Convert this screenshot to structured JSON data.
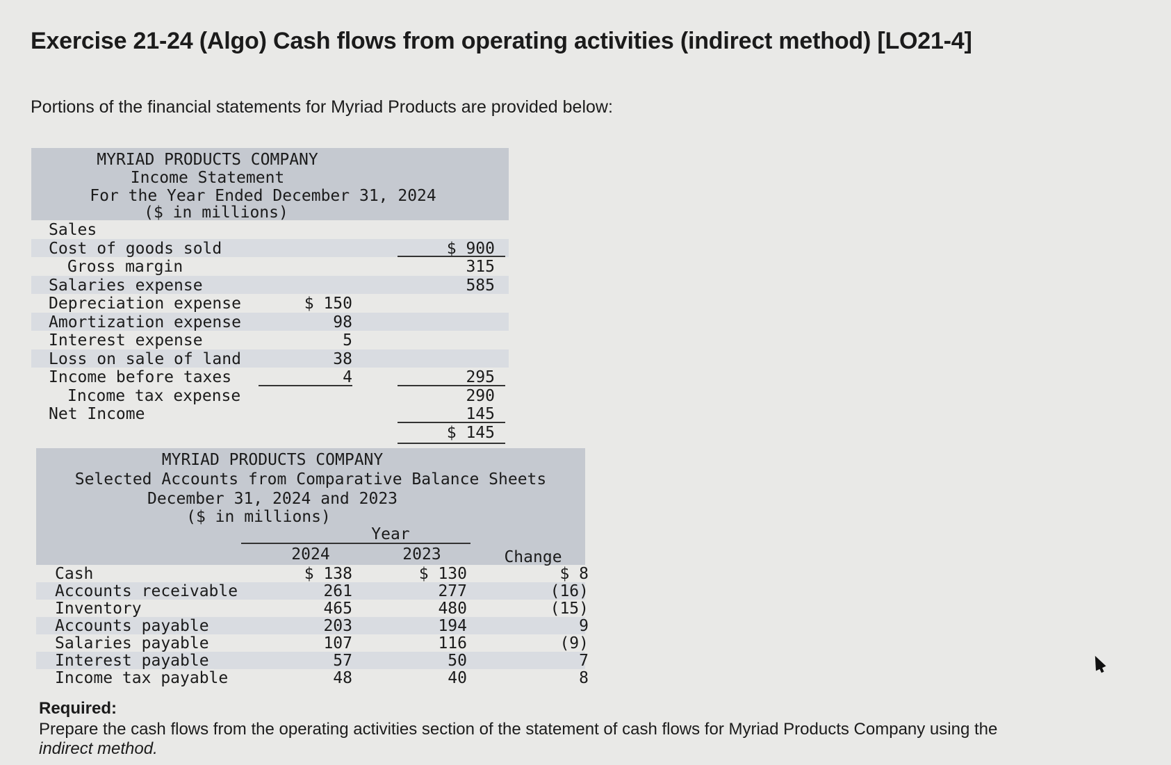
{
  "title": "Exercise 21-24 (Algo) Cash flows from operating activities (indirect method) [LO21-4]",
  "intro": "Portions of the financial statements for Myriad Products are provided below:",
  "income_statement": {
    "company": "MYRIAD PRODUCTS COMPANY",
    "statement": "Income Statement",
    "period": "For the Year Ended December 31, 2024",
    "units": "($ in millions)",
    "rows": [
      {
        "label": "Sales",
        "col1": "",
        "col2": ""
      },
      {
        "label": "Cost of goods sold",
        "col1": "",
        "col2": "$ 900"
      },
      {
        "label": "Gross margin",
        "col1": "",
        "col2": "315"
      },
      {
        "label": "Salaries expense",
        "col1": "",
        "col2": "585"
      },
      {
        "label": "Depreciation expense",
        "col1": "$ 150",
        "col2": ""
      },
      {
        "label": "Amortization expense",
        "col1": "98",
        "col2": ""
      },
      {
        "label": "Interest expense",
        "col1": "5",
        "col2": ""
      },
      {
        "label": "Loss on sale of land",
        "col1": "38",
        "col2": ""
      },
      {
        "label": "Income before taxes",
        "col1": "4",
        "col2": "295"
      },
      {
        "label": "Income tax expense",
        "col1": "",
        "col2": "290"
      },
      {
        "label": "Net Income",
        "col1": "",
        "col2": "145"
      },
      {
        "label": "",
        "col1": "",
        "col2": "$ 145"
      }
    ]
  },
  "balance_sheet": {
    "company": "MYRIAD PRODUCTS COMPANY",
    "statement": "Selected Accounts from Comparative Balance Sheets",
    "period": "December 31, 2024 and 2023",
    "units": "($ in millions)",
    "year_label": "Year",
    "col_2024": "2024",
    "col_2023": "2023",
    "col_change": "Change",
    "rows": [
      {
        "label": "Cash",
        "y2024": "$ 138",
        "y2023": "$ 130",
        "change": "$ 8"
      },
      {
        "label": "Accounts receivable",
        "y2024": "261",
        "y2023": "277",
        "change": "(16)"
      },
      {
        "label": "Inventory",
        "y2024": "465",
        "y2023": "480",
        "change": "(15)"
      },
      {
        "label": "Accounts payable",
        "y2024": "203",
        "y2023": "194",
        "change": "9"
      },
      {
        "label": "Salaries payable",
        "y2024": "107",
        "y2023": "116",
        "change": "(9)"
      },
      {
        "label": "Interest payable",
        "y2024": "57",
        "y2023": "50",
        "change": "7"
      },
      {
        "label": "Income tax payable",
        "y2024": "48",
        "y2023": "40",
        "change": "8"
      }
    ]
  },
  "required": {
    "heading": "Required:",
    "text": "Prepare the cash flows from the operating activities section of the statement of cash flows for Myriad Products Company using the",
    "text_italic": "indirect method."
  }
}
